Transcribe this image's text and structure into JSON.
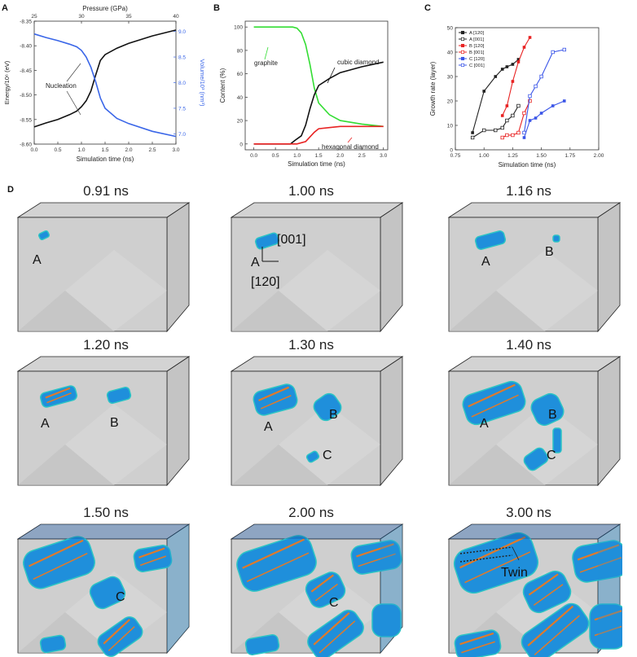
{
  "panels": {
    "A": {
      "letter": "A",
      "top_axis_label": "Pressure (GPa)",
      "top_ticks": [
        "25",
        "30",
        "35",
        "40"
      ],
      "x_label": "Simulation time (ns)",
      "x_ticks": [
        "0.0",
        "0.5",
        "1.0",
        "1.5",
        "2.0",
        "2.5",
        "3.0"
      ],
      "y_left_label": "Energy/10⁶ (eV)",
      "y_left_ticks": [
        "-8.35",
        "-8.40",
        "-8.45",
        "-8.50",
        "-8.55",
        "-8.60"
      ],
      "y_right_label": "Volume/10³ (nm³)",
      "y_right_ticks": [
        "9.0",
        "8.5",
        "8.0",
        "7.5",
        "7.0"
      ],
      "annotation": "Nucleation",
      "colors": {
        "energy": "#111111",
        "volume": "#3a66e8"
      }
    },
    "B": {
      "letter": "B",
      "x_label": "Simulation time (ns)",
      "x_ticks": [
        "0.0",
        "0.5",
        "1.0",
        "1.5",
        "2.0",
        "2.5",
        "3.0"
      ],
      "y_label": "Content (%)",
      "y_ticks": [
        "0",
        "20",
        "40",
        "60",
        "80",
        "100"
      ],
      "labels": {
        "graphite": "graphite",
        "cubic": "cubic diamond",
        "hex": "hexagonal diamond"
      },
      "colors": {
        "graphite": "#33dd33",
        "cubic": "#111111",
        "hex": "#e82222"
      }
    },
    "C": {
      "letter": "C",
      "x_label": "Simulation time (ns)",
      "x_ticks": [
        "0.75",
        "1.00",
        "1.25",
        "1.50",
        "1.75",
        "2.00"
      ],
      "y_label": "Growth rate (layer)",
      "y_ticks": [
        "0",
        "10",
        "20",
        "30",
        "40",
        "50"
      ],
      "legend": [
        "A [120]",
        "A [001]",
        "B [120]",
        "B [001]",
        "C [120]",
        "C [001]"
      ],
      "colors": {
        "A": "#222222",
        "B": "#e82222",
        "C": "#3a55e8"
      }
    },
    "D": {
      "letter": "D",
      "snapshots": [
        {
          "time": "0.91 ns"
        },
        {
          "time": "1.00 ns"
        },
        {
          "time": "1.16 ns"
        },
        {
          "time": "1.20 ns"
        },
        {
          "time": "1.30 ns"
        },
        {
          "time": "1.40 ns"
        },
        {
          "time": "1.50 ns"
        },
        {
          "time": "2.00 ns"
        },
        {
          "time": "3.00 ns"
        }
      ],
      "labels": {
        "A": "A",
        "B": "B",
        "C": "C",
        "dir1": "[001]",
        "dir2": "[120]",
        "twin": "Twin"
      }
    }
  },
  "chart_data": [
    {
      "type": "line",
      "title": "",
      "xlabel": "Simulation time (ns)",
      "xlim": [
        0,
        3
      ],
      "series": [
        {
          "name": "Energy/10⁶ (eV)",
          "axis": "left",
          "ylim": [
            -8.6,
            -8.35
          ],
          "x": [
            0,
            0.25,
            0.5,
            0.75,
            0.9,
            1.0,
            1.1,
            1.2,
            1.3,
            1.4,
            1.5,
            1.75,
            2.0,
            2.5,
            3.0
          ],
          "y": [
            -8.565,
            -8.557,
            -8.55,
            -8.54,
            -8.533,
            -8.524,
            -8.512,
            -8.492,
            -8.46,
            -8.43,
            -8.418,
            -8.405,
            -8.395,
            -8.38,
            -8.368
          ]
        },
        {
          "name": "Volume/10³ (nm³)",
          "axis": "right",
          "ylim": [
            6.8,
            9.2
          ],
          "x": [
            0,
            0.25,
            0.5,
            0.75,
            0.9,
            1.0,
            1.1,
            1.2,
            1.3,
            1.4,
            1.5,
            1.75,
            2.0,
            2.5,
            3.0
          ],
          "y": [
            8.95,
            8.88,
            8.82,
            8.75,
            8.7,
            8.63,
            8.5,
            8.3,
            8.02,
            7.7,
            7.5,
            7.3,
            7.2,
            7.05,
            6.95
          ]
        }
      ]
    },
    {
      "type": "line",
      "xlabel": "Simulation time (ns)",
      "ylabel": "Content (%)",
      "xlim": [
        -0.2,
        3.1
      ],
      "ylim": [
        -5,
        105
      ],
      "series": [
        {
          "name": "graphite",
          "x": [
            0,
            0.9,
            1.0,
            1.1,
            1.2,
            1.3,
            1.4,
            1.5,
            1.75,
            2.0,
            2.5,
            3.0
          ],
          "y": [
            100,
            100,
            99,
            95,
            85,
            68,
            48,
            35,
            25,
            20,
            17,
            15
          ]
        },
        {
          "name": "cubic diamond",
          "x": [
            0,
            0.85,
            0.95,
            1.1,
            1.2,
            1.3,
            1.4,
            1.5,
            1.75,
            2.0,
            2.5,
            3.0
          ],
          "y": [
            0,
            0,
            3,
            7,
            16,
            30,
            42,
            50,
            56,
            61,
            66,
            70
          ]
        },
        {
          "name": "hexagonal diamond",
          "x": [
            0,
            1.0,
            1.2,
            1.3,
            1.4,
            1.5,
            1.75,
            2.0,
            2.5,
            3.0
          ],
          "y": [
            0,
            0,
            2,
            6,
            10,
            13,
            14,
            15,
            15,
            15
          ]
        }
      ]
    },
    {
      "type": "line",
      "xlabel": "Simulation time (ns)",
      "ylabel": "Growth rate (layer)",
      "xlim": [
        0.75,
        2.0
      ],
      "ylim": [
        0,
        50
      ],
      "series": [
        {
          "name": "A [120]",
          "x": [
            0.9,
            1.0,
            1.1,
            1.16,
            1.2,
            1.25,
            1.3
          ],
          "y": [
            7,
            24,
            30,
            33,
            34,
            35,
            37
          ]
        },
        {
          "name": "A [001]",
          "x": [
            0.9,
            1.0,
            1.1,
            1.16,
            1.2,
            1.25,
            1.3
          ],
          "y": [
            5,
            8,
            8,
            9,
            12,
            14,
            18
          ]
        },
        {
          "name": "B [120]",
          "x": [
            1.16,
            1.2,
            1.25,
            1.3,
            1.35,
            1.4
          ],
          "y": [
            14,
            18,
            28,
            36,
            42,
            46
          ]
        },
        {
          "name": "B [001]",
          "x": [
            1.16,
            1.2,
            1.25,
            1.3,
            1.35,
            1.4
          ],
          "y": [
            5,
            6,
            6,
            7,
            15,
            20
          ]
        },
        {
          "name": "C [120]",
          "x": [
            1.35,
            1.4,
            1.45,
            1.5,
            1.6,
            1.7
          ],
          "y": [
            5,
            12,
            13,
            15,
            18,
            20
          ]
        },
        {
          "name": "C [001]",
          "x": [
            1.35,
            1.4,
            1.45,
            1.5,
            1.6,
            1.7
          ],
          "y": [
            7,
            22,
            26,
            30,
            40,
            41
          ]
        }
      ]
    }
  ]
}
